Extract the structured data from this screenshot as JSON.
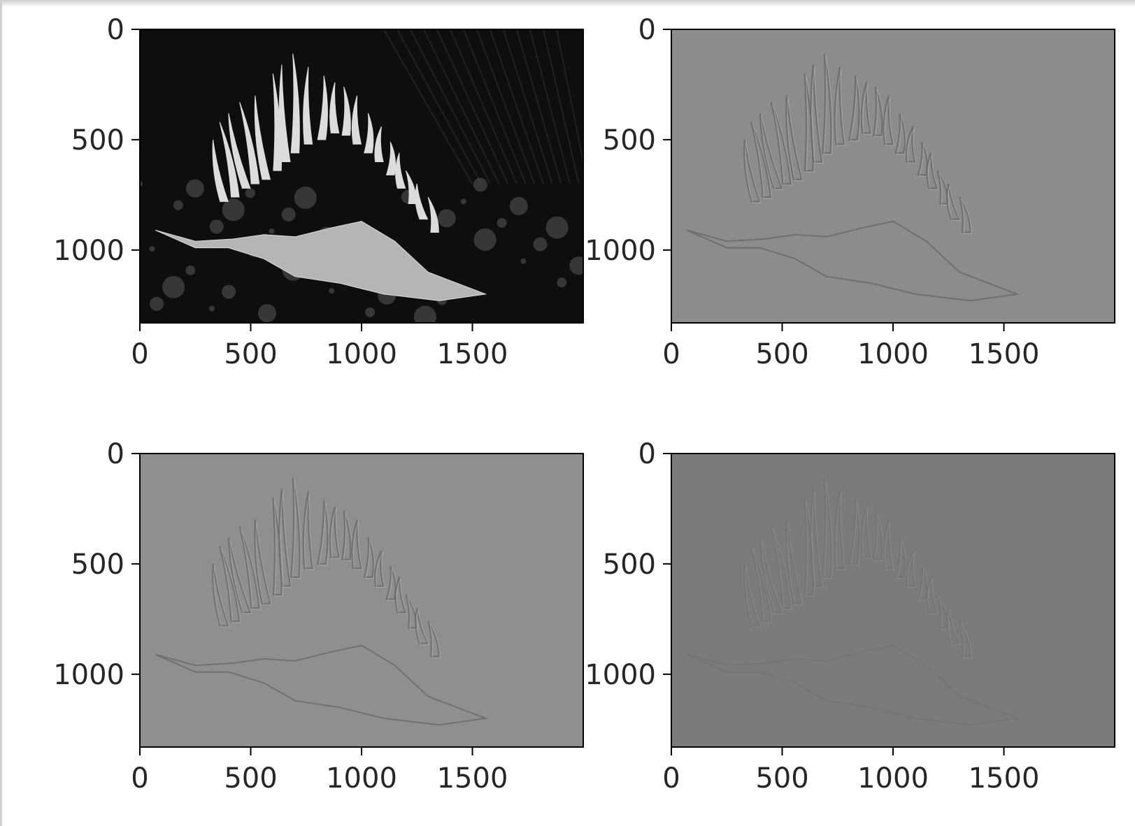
{
  "chart_data": [
    {
      "type": "heatmap",
      "panel": "top-left",
      "content": "grayscale photograph of a nudibranch",
      "x_ticks": [
        "0",
        "500",
        "1000",
        "1500"
      ],
      "y_ticks": [
        "0",
        "500",
        "1000"
      ],
      "xlim": [
        0,
        2000
      ],
      "ylim": [
        1330,
        0
      ],
      "grid": false,
      "colormap": "gray",
      "background_tone": "#0e0e0e",
      "subject_tone": "#dcdcdc"
    },
    {
      "type": "heatmap",
      "panel": "top-right",
      "content": "edge-filtered (embossed) version of the image",
      "x_ticks": [
        "0",
        "500",
        "1000",
        "1500"
      ],
      "y_ticks": [
        "0",
        "500",
        "1000"
      ],
      "xlim": [
        0,
        2000
      ],
      "ylim": [
        1330,
        0
      ],
      "grid": false,
      "colormap": "gray",
      "background_tone": "#8c8c8c",
      "edge_tone": "#6a6a6a"
    },
    {
      "type": "heatmap",
      "panel": "bottom-left",
      "content": "edge-filtered (embossed) version of the image",
      "x_ticks": [
        "0",
        "500",
        "1000",
        "1500"
      ],
      "y_ticks": [
        "0",
        "500",
        "1000"
      ],
      "xlim": [
        0,
        2000
      ],
      "ylim": [
        1330,
        0
      ],
      "grid": false,
      "colormap": "gray",
      "background_tone": "#8f8f8f",
      "edge_tone": "#6c6c6c"
    },
    {
      "type": "heatmap",
      "panel": "bottom-right",
      "content": "faint edge-filtered version of the image",
      "x_ticks": [
        "0",
        "500",
        "1000",
        "1500"
      ],
      "y_ticks": [
        "0",
        "500",
        "1000"
      ],
      "xlim": [
        0,
        2000
      ],
      "ylim": [
        1330,
        0
      ],
      "grid": false,
      "colormap": "gray",
      "background_tone": "#7b7b7b",
      "edge_tone": "#6e6e6e"
    }
  ]
}
